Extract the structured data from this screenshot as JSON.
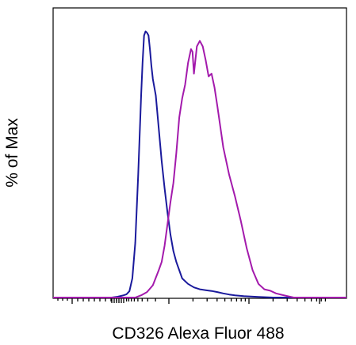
{
  "chart_data": {
    "type": "area",
    "title": "",
    "xlabel": "CD326 Alexa Fluor 488",
    "ylabel": "% of Max",
    "xlim": [
      0,
      100
    ],
    "ylim": [
      0,
      100
    ],
    "x_scale": "biexponential",
    "tick_labels_shown": false,
    "grid": false,
    "legend": "none",
    "series": [
      {
        "color": "#1a1a9c",
        "x": [
          0,
          20,
          22,
          24,
          25,
          26,
          27,
          28,
          29,
          30,
          30.5,
          31,
          31.5,
          32,
          32.5,
          33,
          33.5,
          34,
          35,
          36,
          37,
          38,
          39,
          40,
          41,
          42,
          43,
          44,
          46,
          48,
          50,
          52,
          54,
          56,
          58,
          60,
          62,
          65,
          70,
          75,
          100
        ],
        "values": [
          0,
          0,
          0.3,
          0.8,
          1.2,
          2.3,
          7,
          20,
          45,
          74,
          86,
          96,
          97.5,
          97,
          96,
          91,
          85,
          80,
          74,
          62,
          50,
          40,
          31,
          23,
          17,
          13,
          10,
          7,
          5,
          3.7,
          3,
          2.7,
          2.4,
          2,
          1.5,
          1.1,
          0.8,
          0.5,
          0.2,
          0,
          0
        ]
      },
      {
        "color": "#a31aac",
        "x": [
          0,
          28,
          30,
          32,
          34,
          36,
          37,
          38,
          39,
          40,
          41,
          42,
          43,
          44,
          45,
          46,
          47,
          47.5,
          48,
          49,
          50,
          51,
          52,
          53,
          54,
          55,
          56,
          58,
          60,
          62,
          64,
          66,
          68,
          70,
          72,
          74,
          76,
          78,
          80,
          82,
          100
        ],
        "values": [
          0,
          0,
          0.8,
          2,
          4.5,
          10,
          13,
          19,
          27,
          35,
          42,
          53,
          66,
          73,
          78,
          86,
          91,
          90,
          82,
          92,
          94,
          92,
          87,
          81,
          82,
          77,
          70,
          55,
          45,
          37,
          28,
          18,
          10,
          5,
          3,
          2.5,
          1.5,
          1,
          0.5,
          0,
          0
        ]
      }
    ]
  }
}
